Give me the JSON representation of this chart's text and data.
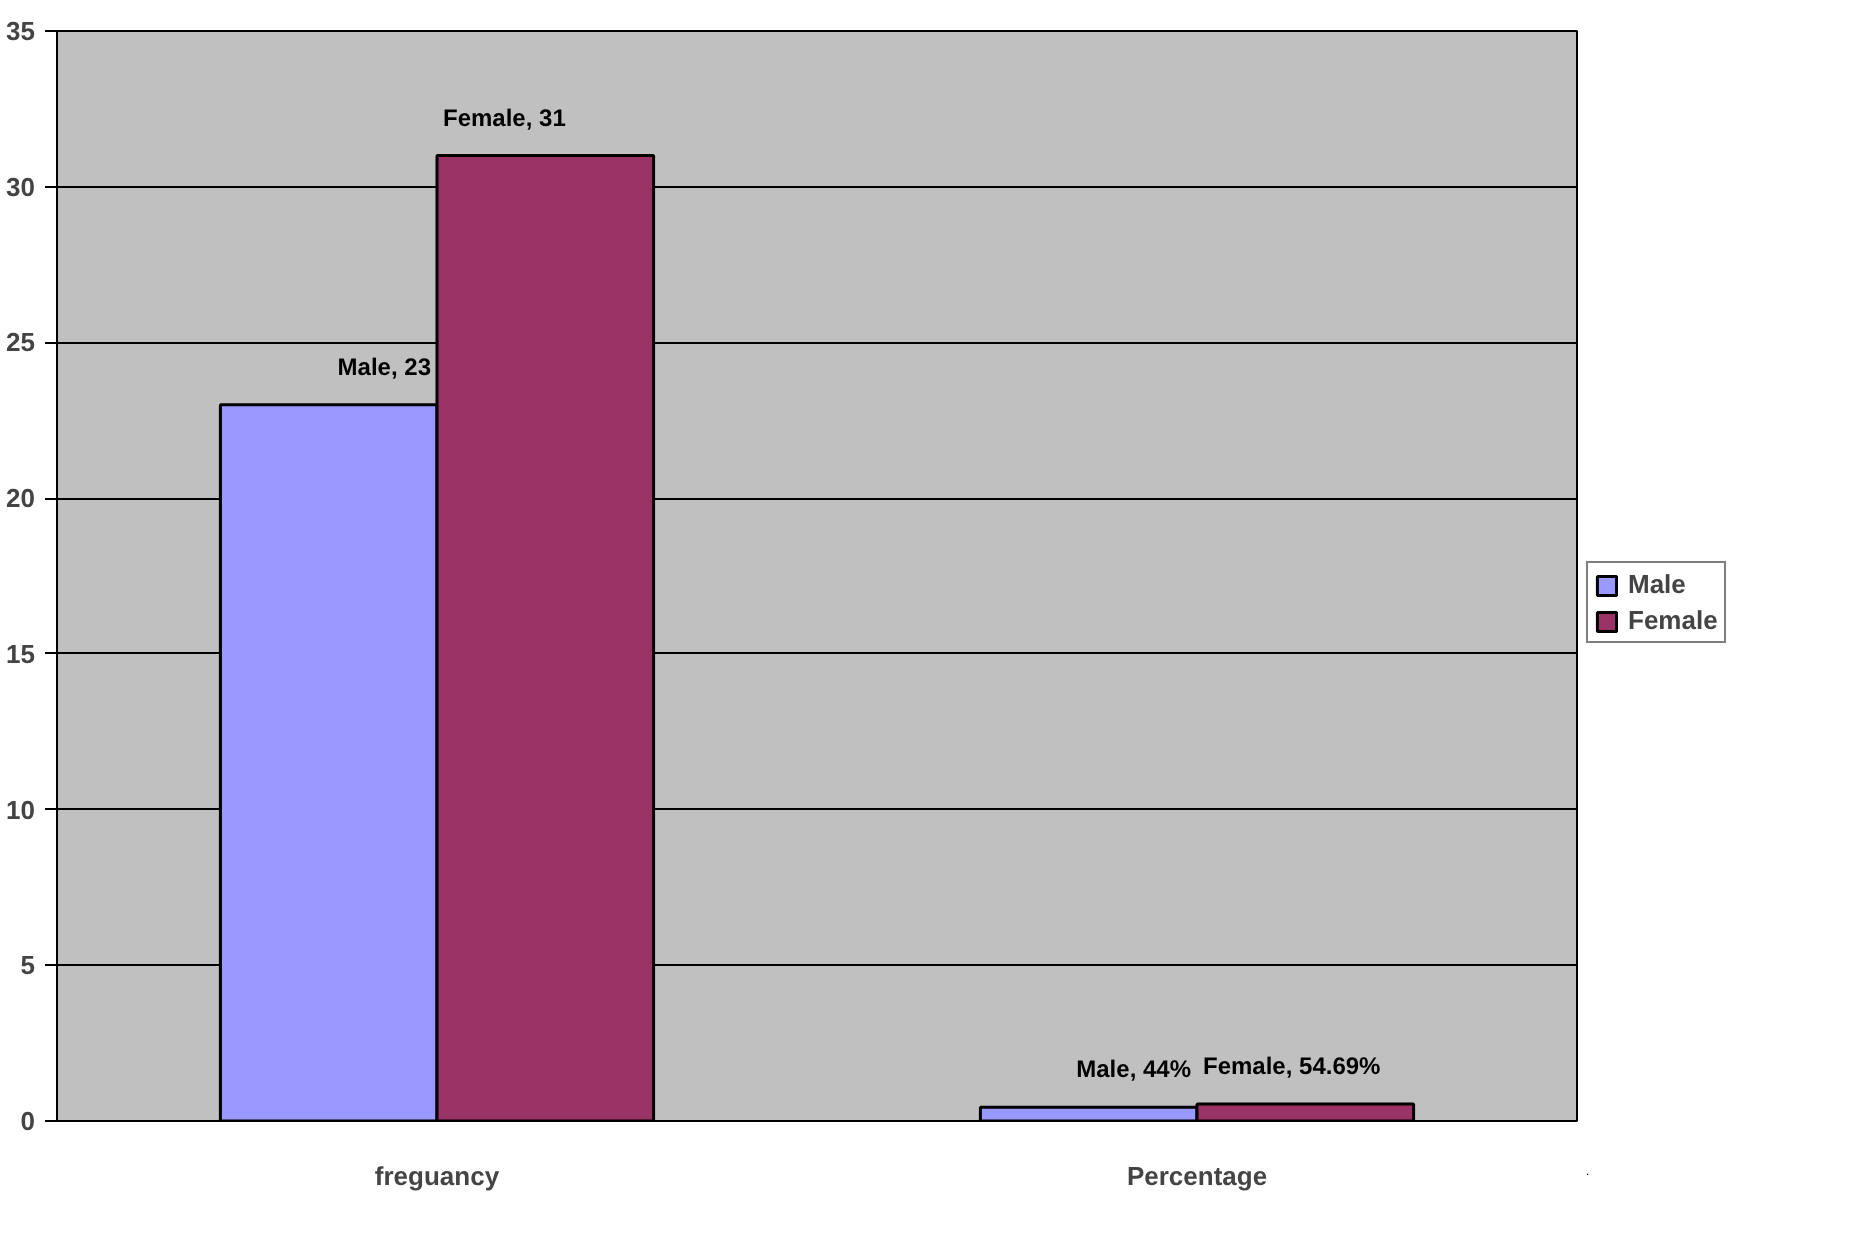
{
  "chart_data": {
    "type": "bar",
    "categories": [
      "freguancy",
      "Percentage"
    ],
    "series": [
      {
        "name": "Male",
        "color": "#9999ff",
        "values": [
          23,
          0.44
        ],
        "value_labels": [
          "Male, 23",
          "Male, 44%"
        ]
      },
      {
        "name": "Female",
        "color": "#993366",
        "values": [
          31,
          0.5469
        ],
        "value_labels": [
          "Female, 31",
          "Female, 54.69%"
        ]
      }
    ],
    "ylim": [
      0,
      35
    ],
    "yticks": [
      0,
      5,
      10,
      15,
      20,
      25,
      30,
      35
    ],
    "grid": "y",
    "legend": "right"
  }
}
